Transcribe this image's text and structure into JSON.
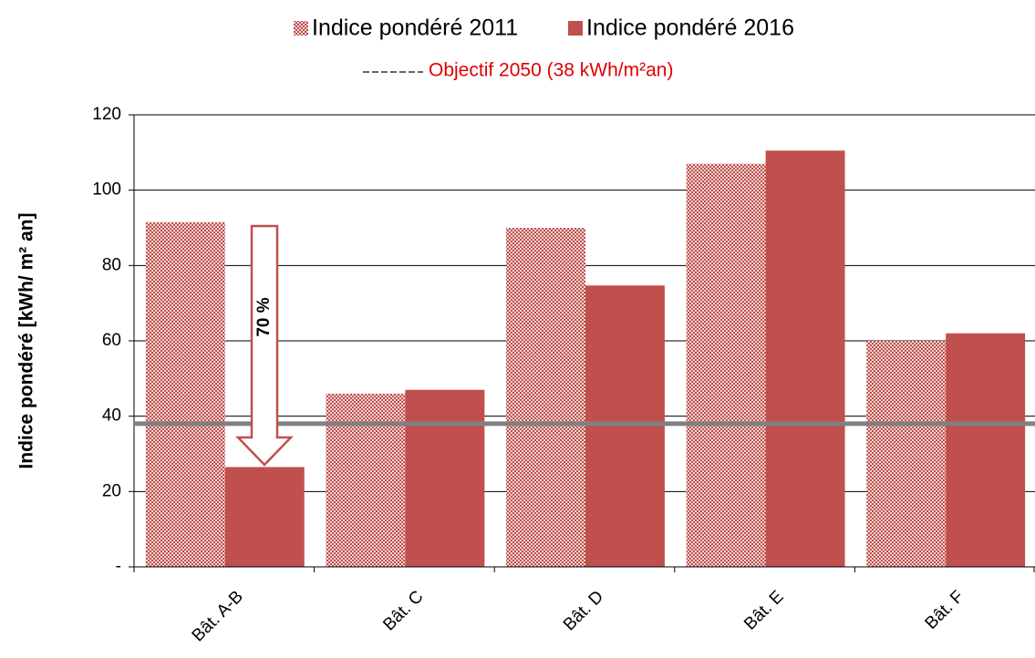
{
  "chart_data": {
    "type": "bar",
    "y_label": "Indice pondéré  [kWh/ m² an]",
    "categories": [
      "Bât. A-B",
      "Bât. C",
      "Bât. D",
      "Bât. E",
      "Bât. F"
    ],
    "series": [
      {
        "name": "Indice pondéré 2011",
        "color": "#c0504d",
        "pattern": "checker",
        "values": [
          91.5,
          46,
          90,
          107,
          60
        ]
      },
      {
        "name": "Indice pondéré 2016",
        "color": "#c0504d",
        "values": [
          26.5,
          47,
          74.7,
          110.5,
          62
        ]
      }
    ],
    "reference_line": {
      "name": "Objectif 2050 (38  kWh/m²an)",
      "value": 38,
      "color": "#808080",
      "label_color": "#e00000"
    },
    "annotation": "70 %",
    "ylim": [
      0,
      120
    ],
    "yticks": [
      {
        "value": 0,
        "label": "-"
      },
      20,
      40,
      60,
      80,
      100,
      120
    ],
    "grid": true
  }
}
